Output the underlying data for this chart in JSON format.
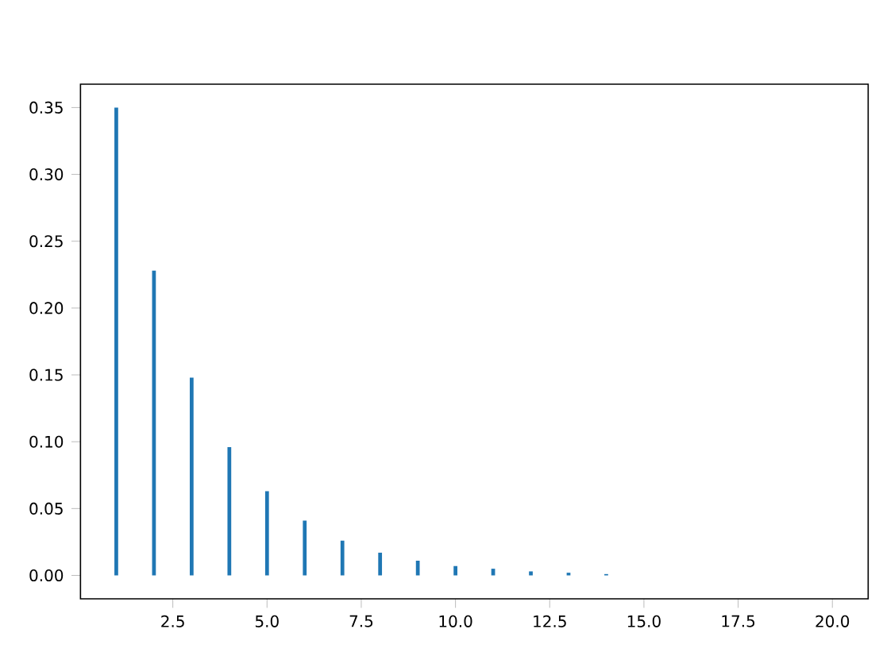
{
  "chart_data": {
    "type": "bar",
    "x": [
      1,
      2,
      3,
      4,
      5,
      6,
      7,
      8,
      9,
      10,
      11,
      12,
      13,
      14
    ],
    "values": [
      0.35,
      0.228,
      0.148,
      0.096,
      0.063,
      0.041,
      0.026,
      0.017,
      0.011,
      0.007,
      0.005,
      0.003,
      0.002,
      0.001
    ],
    "color": "#1f77b4",
    "xlim": [
      0.05,
      20.95
    ],
    "ylim": [
      -0.0175,
      0.3675
    ],
    "xticks": [
      2.5,
      {
        "value": 5,
        "label": "5.0"
      },
      7.5,
      {
        "value": 10,
        "label": "10.0"
      },
      12.5,
      {
        "value": 15,
        "label": "15.0"
      },
      17.5,
      {
        "value": 20,
        "label": "20.0"
      }
    ],
    "yticks": [
      {
        "value": 0,
        "label": "0.00"
      },
      0.05,
      {
        "value": 0.1,
        "label": "0.10"
      },
      0.15,
      {
        "value": 0.2,
        "label": "0.20"
      },
      0.25,
      {
        "value": 0.3,
        "label": "0.30"
      },
      0.35
    ]
  }
}
